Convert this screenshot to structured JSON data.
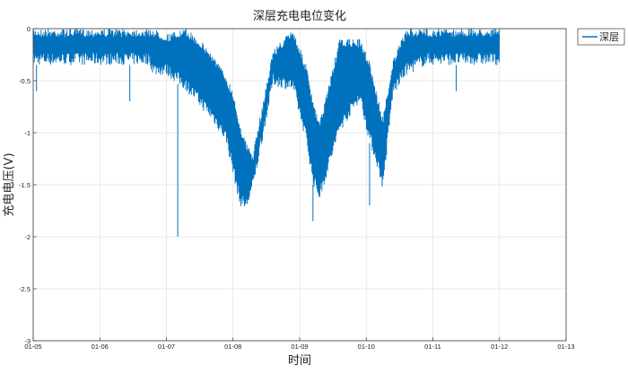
{
  "chart_data": {
    "type": "line",
    "title": "深层充电电位变化",
    "xlabel": "时间",
    "ylabel": "充电电压(V)",
    "grid": true,
    "legend_position": "outside-top-right",
    "xlim": [
      "01-05",
      "01-13"
    ],
    "x_ticks": [
      "01-05",
      "01-06",
      "01-07",
      "01-08",
      "01-09",
      "01-10",
      "01-11",
      "01-12",
      "01-13"
    ],
    "ylim": [
      -3,
      0
    ],
    "y_ticks": [
      "0",
      "-0.5",
      "-1",
      "-1.5",
      "-2",
      "-2.5",
      "-3"
    ],
    "series": [
      {
        "name": "深层",
        "color": "#0072bd",
        "x_unit": "days after 01-05",
        "x": [
          0.0,
          0.6,
          1.2,
          1.75,
          1.8,
          2.0,
          2.3,
          2.5,
          2.7,
          2.9,
          3.0,
          3.1,
          3.2,
          3.3,
          3.6,
          3.9,
          4.1,
          4.2,
          4.3,
          4.6,
          4.9,
          5.05,
          5.15,
          5.25,
          5.4,
          5.6,
          5.9,
          6.3,
          7.0
        ],
        "upper": [
          0.0,
          0.0,
          0.0,
          0.0,
          0.0,
          -0.05,
          0.0,
          -0.1,
          -0.25,
          -0.45,
          -0.6,
          -0.9,
          -1.1,
          -1.2,
          -0.2,
          0.0,
          -0.35,
          -0.7,
          -0.9,
          -0.1,
          -0.1,
          -0.3,
          -0.6,
          -0.85,
          -0.3,
          0.0,
          0.0,
          0.0,
          0.0
        ],
        "lower": [
          -0.35,
          -0.35,
          -0.35,
          -0.35,
          -0.45,
          -0.45,
          -0.6,
          -0.75,
          -0.9,
          -1.1,
          -1.4,
          -1.7,
          -1.75,
          -1.55,
          -0.55,
          -0.6,
          -1.1,
          -1.5,
          -1.65,
          -1.0,
          -0.7,
          -1.1,
          -1.3,
          -1.55,
          -0.65,
          -0.45,
          -0.35,
          -0.35,
          -0.35
        ],
        "spikes": [
          {
            "x": 2.17,
            "y": -2.0
          },
          {
            "x": 1.45,
            "y": -0.7
          },
          {
            "x": 4.2,
            "y": -1.85
          },
          {
            "x": 5.05,
            "y": -1.7
          },
          {
            "x": 0.05,
            "y": -0.6
          },
          {
            "x": 6.35,
            "y": -0.6
          }
        ]
      }
    ]
  }
}
